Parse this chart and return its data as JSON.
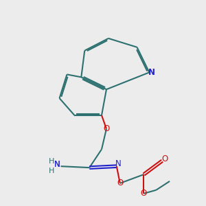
{
  "bg_color": "#ececec",
  "bond_color": "#2d7070",
  "n_color": "#2222cc",
  "o_color": "#cc1111",
  "h_color": "#2d7070",
  "lw": 1.5,
  "figsize": [
    3.0,
    3.0
  ],
  "dpi": 100,
  "xlim": [
    0,
    10
  ],
  "ylim": [
    0,
    10
  ]
}
